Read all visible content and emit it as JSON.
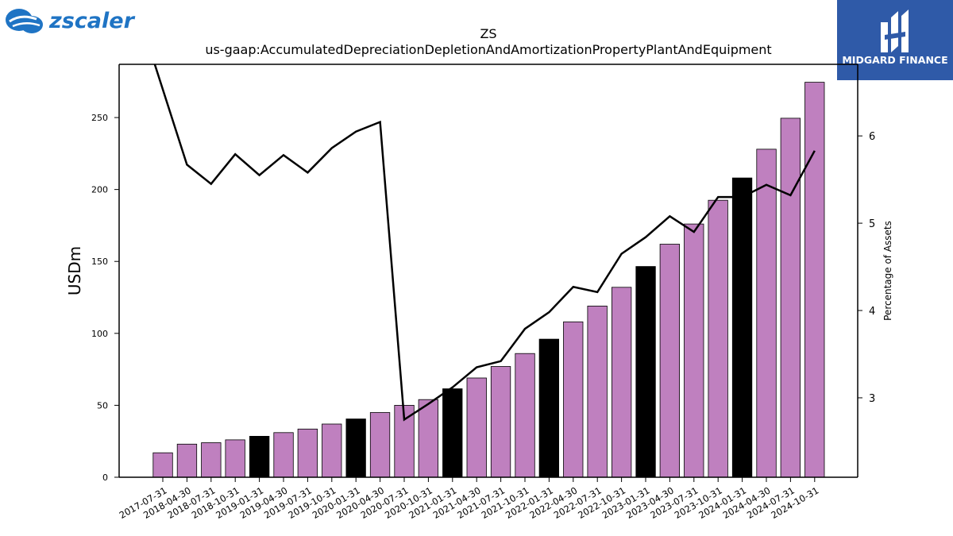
{
  "header": {
    "left_logo_text": "zscaler",
    "right_logo_text": "MIDGARD FINANCE"
  },
  "chart_data": {
    "type": "bar",
    "title": "ZS",
    "subtitle": "us-gaap:AccumulatedDepreciationDepletionAndAmortizationPropertyPlantAndEquipment",
    "ylabel": "USDm",
    "y2label": "Percentage of Assets",
    "ylim": [
      0,
      287
    ],
    "y2lim": [
      2.09,
      6.82
    ],
    "yticks": [
      0,
      50,
      100,
      150,
      200,
      250
    ],
    "y2ticks": [
      3,
      4,
      5,
      6
    ],
    "categories": [
      "2017-07-31",
      "2018-04-30",
      "2018-07-31",
      "2018-10-31",
      "2019-01-31",
      "2019-04-30",
      "2019-07-31",
      "2019-10-31",
      "2020-01-31",
      "2020-04-30",
      "2020-07-31",
      "2020-10-31",
      "2021-01-31",
      "2021-04-30",
      "2021-07-31",
      "2021-10-31",
      "2022-01-31",
      "2022-04-30",
      "2022-07-31",
      "2022-10-31",
      "2023-01-31",
      "2023-04-30",
      "2023-07-31",
      "2023-10-31",
      "2024-01-31",
      "2024-04-30",
      "2024-07-31",
      "2024-10-31"
    ],
    "series": [
      {
        "type": "bar",
        "values": [
          17,
          23,
          24,
          26,
          28.5,
          31,
          33.5,
          37,
          40.5,
          45,
          50,
          54,
          61.5,
          69,
          77,
          86,
          96,
          108,
          119,
          132,
          146.5,
          162,
          176,
          192.5,
          208,
          228,
          249.5,
          274.5
        ],
        "highlight": [
          false,
          false,
          false,
          false,
          true,
          false,
          false,
          false,
          true,
          false,
          false,
          false,
          true,
          false,
          false,
          false,
          true,
          false,
          false,
          false,
          true,
          false,
          false,
          false,
          true,
          false,
          false,
          false
        ]
      },
      {
        "type": "line",
        "axis": "right",
        "values": [
          7.1,
          5.67,
          5.45,
          5.79,
          5.55,
          5.78,
          5.58,
          5.86,
          6.05,
          6.16,
          2.75,
          2.93,
          3.12,
          3.35,
          3.42,
          3.79,
          3.98,
          4.27,
          4.21,
          4.65,
          4.84,
          5.08,
          4.9,
          5.3,
          5.3,
          5.44,
          5.32,
          5.83
        ]
      }
    ],
    "colors": {
      "bar": "#bf80bf",
      "bar_highlight": "#000000",
      "line": "#000000",
      "left_logo": "#1f74c4",
      "right_logo_bg": "#2f5aa8"
    },
    "legend": "none",
    "grid": false
  }
}
